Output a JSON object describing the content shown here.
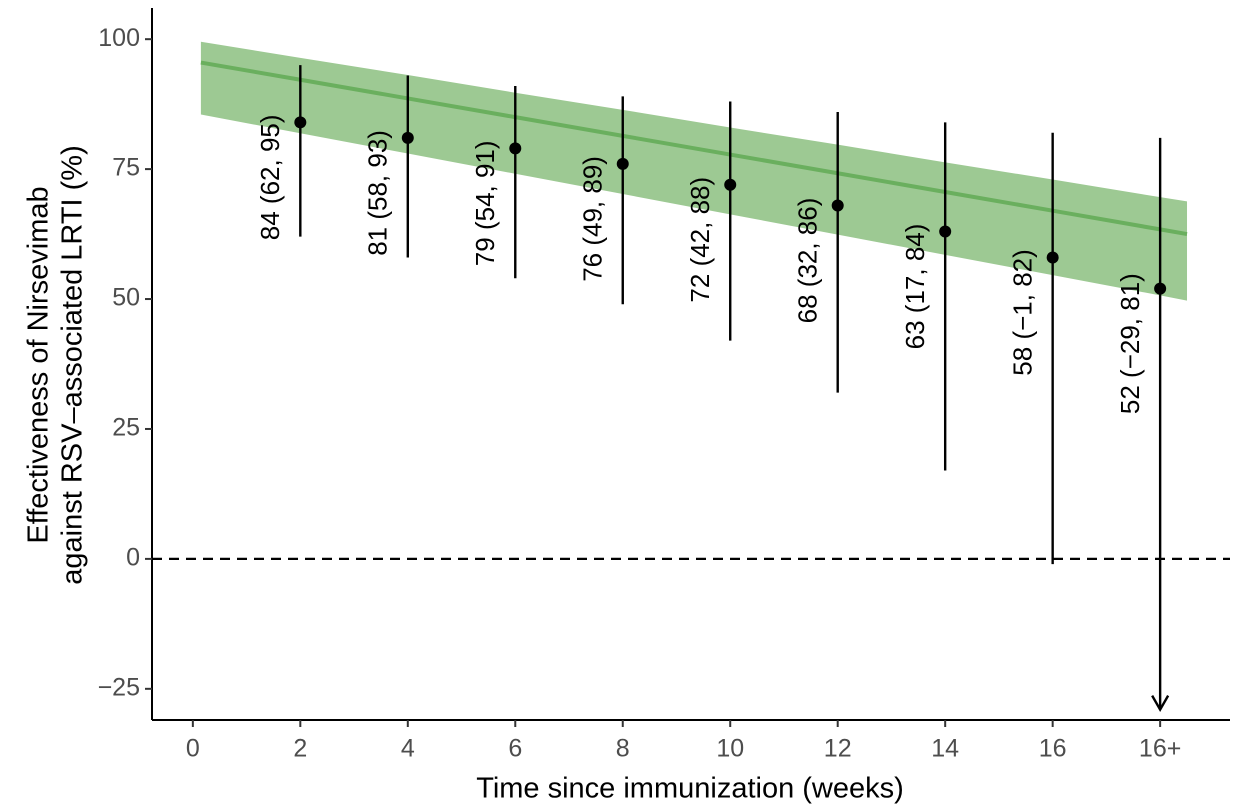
{
  "chart_data": {
    "type": "errorbar",
    "x_label": "Time since immunization (weeks)",
    "y_label": [
      "Effectiveness of Nirsevimab",
      "against RSV–associated LRTI (%)"
    ],
    "xlim": [
      -0.76,
      19.3
    ],
    "ylim": [
      -31,
      106
    ],
    "xticks": [
      0,
      2,
      4,
      6,
      8,
      10,
      12,
      14,
      16,
      {
        "value": 18,
        "label": "16+"
      }
    ],
    "yticks": [
      {
        "value": -25,
        "label": "−25"
      },
      0,
      25,
      50,
      75,
      100
    ],
    "reference_line": 0,
    "points": {
      "color": "#000000",
      "x": [
        2,
        4,
        6,
        8,
        10,
        12,
        14,
        16,
        18
      ],
      "values": [
        84,
        81,
        79,
        76,
        72,
        68,
        63,
        58,
        52
      ],
      "lower": [
        62,
        58,
        54,
        49,
        42,
        32,
        17,
        -1,
        -29
      ],
      "upper": [
        95,
        93,
        91,
        89,
        88,
        86,
        84,
        82,
        81
      ],
      "value_labels": [
        "84 (62, 95)",
        "81 (58, 93)",
        "79 (54, 91)",
        "76 (49, 89)",
        "72 (42, 88)",
        "68 (32, 86)",
        "63 (17, 84)",
        "58 (−1, 82)",
        "52 (−29, 81)"
      ]
    },
    "band": {
      "color": "#9dc993",
      "line_color": "#6aaf5e",
      "x": [
        0.15,
        2,
        4,
        6,
        8,
        10,
        12,
        14,
        16,
        18,
        18.5
      ],
      "fit": [
        95.5,
        92.2,
        88.6,
        85.0,
        81.4,
        77.8,
        74.2,
        70.6,
        67.0,
        63.4,
        62.5
      ],
      "lower": [
        85.5,
        81.9,
        78.0,
        74.1,
        70.2,
        66.3,
        62.4,
        58.5,
        54.6,
        50.7,
        49.7
      ],
      "upper": [
        99.5,
        96.4,
        93.1,
        89.7,
        86.4,
        83.0,
        79.7,
        76.3,
        73.0,
        69.6,
        68.8
      ]
    }
  }
}
